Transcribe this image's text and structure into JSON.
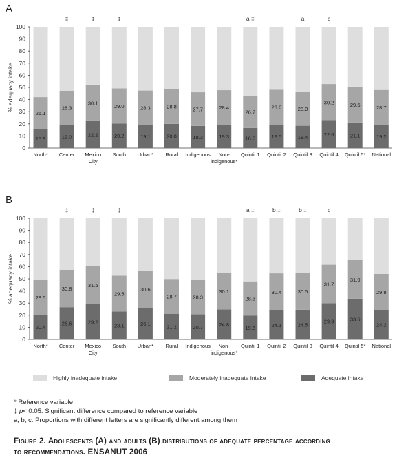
{
  "chart_data": [
    {
      "type": "bar",
      "stacked": true,
      "panel": "A",
      "ylabel": "% adequacy intake",
      "ylim": [
        0,
        100
      ],
      "yticks": [
        "0",
        "10",
        "20",
        "30",
        "40",
        "50",
        "60",
        "70",
        "80",
        "90",
        "100"
      ],
      "categories": [
        [
          "North*"
        ],
        [
          "Center"
        ],
        [
          "Mexico",
          "City"
        ],
        [
          "South"
        ],
        [
          "Urban*"
        ],
        [
          "Rural"
        ],
        [
          "Indigenous"
        ],
        [
          "Non-",
          "indigenous*"
        ],
        [
          "Quintil 1"
        ],
        [
          "Quintil 2"
        ],
        [
          "Quintil 3"
        ],
        [
          "Quintil 4"
        ],
        [
          "Quintil 5*"
        ],
        [
          "National"
        ]
      ],
      "markers": [
        "",
        "‡",
        "‡",
        "‡",
        "",
        "",
        "",
        "",
        "a ‡",
        "",
        "a",
        "b",
        "",
        ""
      ],
      "series": [
        {
          "name": "Adequate intake",
          "values": [
            15.9,
            19.0,
            22.2,
            20.2,
            19.1,
            20.0,
            18.3,
            19.3,
            16.6,
            19.5,
            18.4,
            22.6,
            21.1,
            19.2
          ],
          "labels": [
            "15.9",
            "19.0",
            "22.2",
            "20.2",
            "19.1",
            "20.0",
            "18.3",
            "19.3",
            "16.6",
            "19.5",
            "18.4",
            "22.6",
            "21.1",
            "19.2"
          ]
        },
        {
          "name": "Moderately inadequate intake",
          "values": [
            26.1,
            28.3,
            30.1,
            29.0,
            28.3,
            28.8,
            27.7,
            28.4,
            26.7,
            28.6,
            28.0,
            30.2,
            29.5,
            28.7
          ],
          "labels": [
            "26.1",
            "28.3",
            "30.1",
            "29.0",
            "28.3",
            "28.8",
            "27.7",
            "28.4",
            "26.7",
            "28.6",
            "28.0",
            "30.2",
            "29.5",
            "28.7"
          ]
        },
        {
          "name": "Highly inadequate intake",
          "values": [
            58.0,
            52.7,
            47.7,
            50.8,
            52.6,
            51.2,
            54.0,
            52.3,
            56.7,
            51.9,
            53.6,
            47.2,
            49.4,
            52.1
          ]
        }
      ]
    },
    {
      "type": "bar",
      "stacked": true,
      "panel": "B",
      "ylabel": "% adequacy intake",
      "ylim": [
        0,
        100
      ],
      "yticks": [
        "0",
        "10",
        "20",
        "30",
        "40",
        "50",
        "60",
        "70",
        "80",
        "90",
        "100"
      ],
      "categories": [
        [
          "North*"
        ],
        [
          "Center"
        ],
        [
          "Mexico",
          "City"
        ],
        [
          "South"
        ],
        [
          "Urban*"
        ],
        [
          "Rural"
        ],
        [
          "Indigenous"
        ],
        [
          "Non-",
          "indigenous*"
        ],
        [
          "Quintil 1"
        ],
        [
          "Quintil 2"
        ],
        [
          "Quintil 3"
        ],
        [
          "Quintil 4"
        ],
        [
          "Quintil 5*"
        ],
        [
          "National"
        ]
      ],
      "markers": [
        "",
        "‡",
        "‡",
        "‡",
        "",
        "",
        "",
        "",
        "a ‡",
        "b ‡",
        "b ‡",
        "c",
        "",
        ""
      ],
      "series": [
        {
          "name": "Adequate intake",
          "values": [
            20.4,
            26.6,
            29.2,
            23.1,
            26.1,
            21.2,
            20.7,
            24.8,
            19.6,
            24.1,
            24.5,
            29.9,
            33.6,
            24.2
          ],
          "labels": [
            "20.4",
            "26.6",
            "29.2",
            "23.1",
            "26.1",
            "21.2",
            "20.7",
            "24.8",
            "19.6",
            "24.1",
            "24.5",
            "29.9",
            "33.6",
            "24.2"
          ]
        },
        {
          "name": "Moderately inadequate intake",
          "values": [
            28.5,
            30.8,
            31.5,
            29.5,
            30.6,
            28.7,
            28.3,
            30.1,
            28.3,
            30.4,
            30.5,
            31.7,
            31.9,
            29.8
          ],
          "labels": [
            "28.5",
            "30.8",
            "31.5",
            "29.5",
            "30.6",
            "28.7",
            "28.3",
            "30.1",
            "28.3",
            "30.4",
            "30.5",
            "31.7",
            "31.9",
            "29.8"
          ]
        },
        {
          "name": "Highly inadequate intake",
          "values": [
            51.1,
            42.6,
            39.3,
            47.4,
            43.3,
            50.1,
            51.0,
            45.1,
            52.1,
            45.5,
            45.0,
            38.4,
            34.5,
            46.0
          ]
        }
      ]
    }
  ],
  "colors": {
    "Highly inadequate intake": "#dedede",
    "Moderately inadequate intake": "#a6a6a6",
    "Adequate intake": "#6c6c6c"
  },
  "legend": {
    "highly": "Highly inadequate intake",
    "moderately": "Moderately inadequate intake",
    "adequate": "Adequate intake"
  },
  "notes": {
    "reference": "* Reference variable",
    "significance_symbol": "‡",
    "significance_p": "p",
    "significance_text": "< 0.05: Significant difference compared to reference variable",
    "letters": "a, b, c: Proportions with different letters are significantly different among them"
  },
  "caption": {
    "line1": "Figure 2. Adolescents (A) and adults (B) distributions of adequate percentage according",
    "line2": "to recommendations. ENSANUT 2006"
  }
}
